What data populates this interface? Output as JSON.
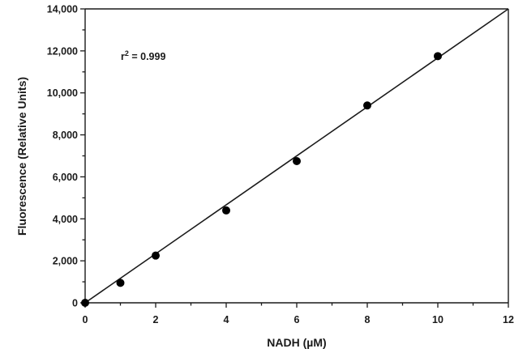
{
  "chart_data": {
    "type": "scatter",
    "xlabel": "NADH (µM)",
    "ylabel": "Fluorescence (Relative Units)",
    "xlim": [
      0,
      12
    ],
    "ylim": [
      0,
      14000
    ],
    "x_ticks": [
      0,
      2,
      4,
      6,
      8,
      10,
      12
    ],
    "x_tick_labels": [
      "0",
      "2",
      "4",
      "6",
      "8",
      "10",
      "12"
    ],
    "x_minor_ticks": [
      1,
      3,
      5,
      7,
      9,
      11
    ],
    "y_ticks": [
      0,
      2000,
      4000,
      6000,
      8000,
      10000,
      12000,
      14000
    ],
    "y_tick_labels": [
      "0",
      "2,000",
      "4,000",
      "6,000",
      "8,000",
      "10,000",
      "12,000",
      "14,000"
    ],
    "y_minor_ticks": [
      1000,
      3000,
      5000,
      7000,
      9000,
      11000,
      13000
    ],
    "grid": false,
    "series": [
      {
        "x": [
          0,
          1,
          2,
          4,
          6,
          8,
          10
        ],
        "y": [
          0,
          950,
          2250,
          4400,
          6750,
          9400,
          11750
        ],
        "color": "#000000"
      }
    ],
    "fit_line": {
      "x": [
        0,
        12
      ],
      "y": [
        0,
        14000
      ],
      "color": "#1a1a1a"
    },
    "annotation": {
      "prefix": "r",
      "superscript": "2",
      "suffix": " = 0.999"
    }
  }
}
